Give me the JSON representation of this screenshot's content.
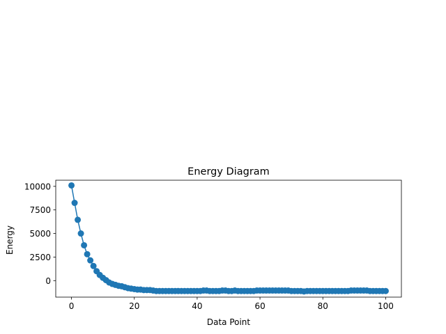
{
  "chart_data": {
    "type": "line",
    "title": "Energy Diagram",
    "xlabel": "Data Point",
    "ylabel": "Energy",
    "xlim": [
      -5,
      105
    ],
    "ylim": [
      -1750,
      10650
    ],
    "xticks": [
      0,
      20,
      40,
      60,
      80,
      100
    ],
    "yticks": [
      0,
      2500,
      5000,
      7500,
      10000
    ],
    "xtick_labels": [
      "0",
      "20",
      "40",
      "60",
      "80",
      "100"
    ],
    "ytick_labels": [
      "0",
      "2500",
      "5000",
      "7500",
      "10000"
    ],
    "grid": false,
    "marker": "circle",
    "color": "#1f77b4",
    "series": [
      {
        "x": [
          0,
          1,
          2,
          3,
          4,
          5,
          6,
          7,
          8,
          9,
          10,
          11,
          12,
          13,
          14,
          15,
          16,
          17,
          18,
          19,
          20,
          21,
          22,
          23,
          24,
          25,
          26,
          27,
          28,
          29,
          30,
          31,
          32,
          33,
          34,
          35,
          36,
          37,
          38,
          39,
          40,
          41,
          42,
          43,
          44,
          45,
          46,
          47,
          48,
          49,
          50,
          51,
          52,
          53,
          54,
          55,
          56,
          57,
          58,
          59,
          60,
          61,
          62,
          63,
          64,
          65,
          66,
          67,
          68,
          69,
          70,
          71,
          72,
          73,
          74,
          75,
          76,
          77,
          78,
          79,
          80,
          81,
          82,
          83,
          84,
          85,
          86,
          87,
          88,
          89,
          90,
          91,
          92,
          93,
          94,
          95,
          96,
          97,
          98,
          99,
          100
        ],
        "y": [
          10100,
          8250,
          6450,
          5000,
          3750,
          2800,
          2150,
          1550,
          1000,
          600,
          300,
          50,
          -200,
          -350,
          -450,
          -550,
          -600,
          -700,
          -800,
          -850,
          -900,
          -950,
          -950,
          -1000,
          -1000,
          -1000,
          -1050,
          -1100,
          -1100,
          -1100,
          -1100,
          -1100,
          -1100,
          -1100,
          -1100,
          -1100,
          -1100,
          -1100,
          -1100,
          -1100,
          -1100,
          -1100,
          -1050,
          -1050,
          -1100,
          -1100,
          -1100,
          -1100,
          -1050,
          -1050,
          -1100,
          -1100,
          -1050,
          -1100,
          -1100,
          -1100,
          -1100,
          -1100,
          -1100,
          -1050,
          -1050,
          -1050,
          -1050,
          -1050,
          -1050,
          -1050,
          -1050,
          -1050,
          -1050,
          -1050,
          -1100,
          -1100,
          -1100,
          -1100,
          -1150,
          -1100,
          -1100,
          -1100,
          -1100,
          -1100,
          -1100,
          -1100,
          -1100,
          -1100,
          -1100,
          -1100,
          -1100,
          -1100,
          -1100,
          -1050,
          -1050,
          -1050,
          -1050,
          -1050,
          -1050,
          -1100,
          -1100,
          -1100,
          -1100,
          -1100,
          -1100
        ]
      }
    ]
  }
}
